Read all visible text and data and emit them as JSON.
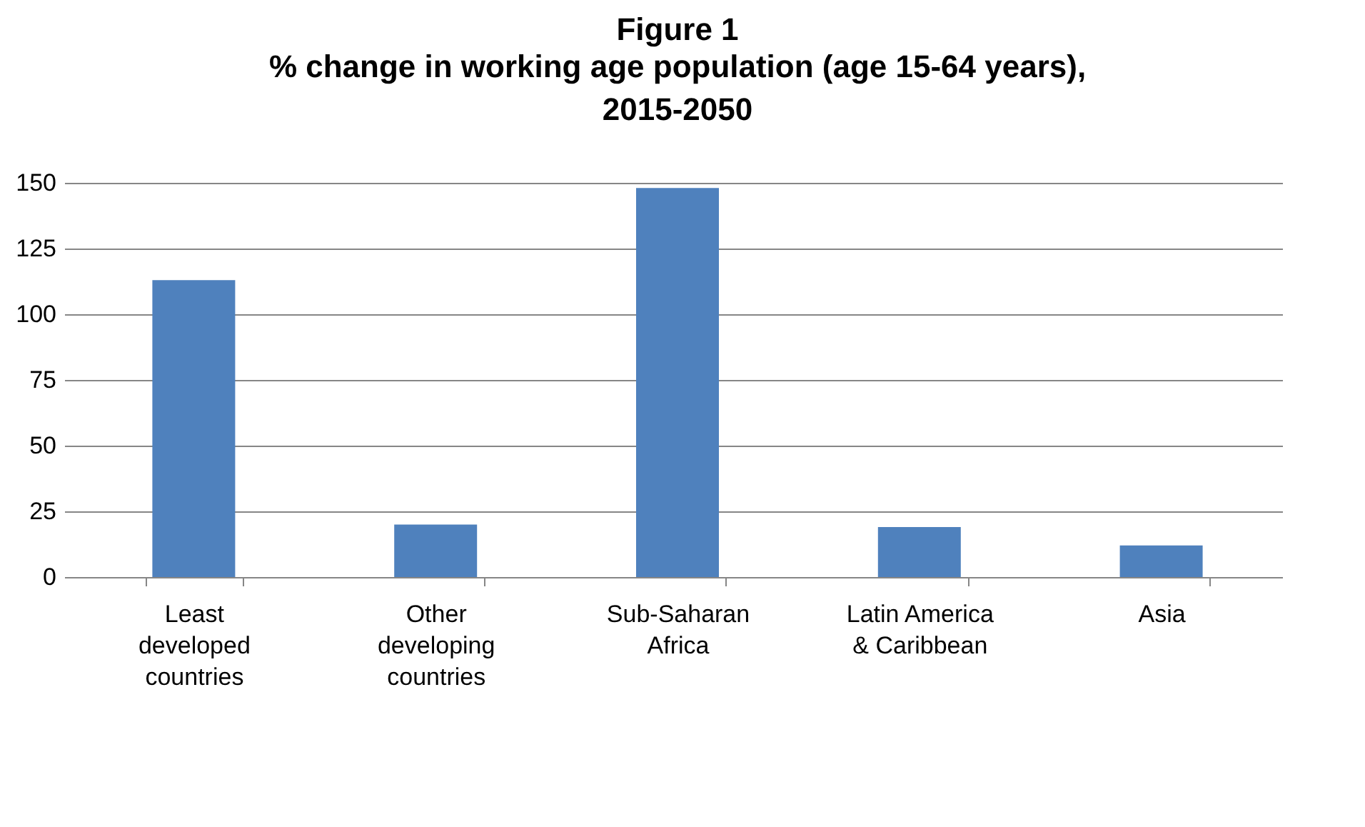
{
  "chart_data": {
    "type": "bar",
    "title": "Figure 1",
    "subtitle": "% change in working age population (age 15-64 years), 2015-2050",
    "categories": [
      "Least developed countries",
      "Other developing countries",
      "Sub-Saharan Africa",
      "Latin America & Caribbean",
      "Asia"
    ],
    "values": [
      113,
      20,
      148,
      19,
      12
    ],
    "color": "#4f81bd",
    "ylim": [
      0,
      150
    ],
    "yticks": [
      0,
      25,
      50,
      75,
      100,
      125,
      150
    ],
    "grid": "y"
  }
}
